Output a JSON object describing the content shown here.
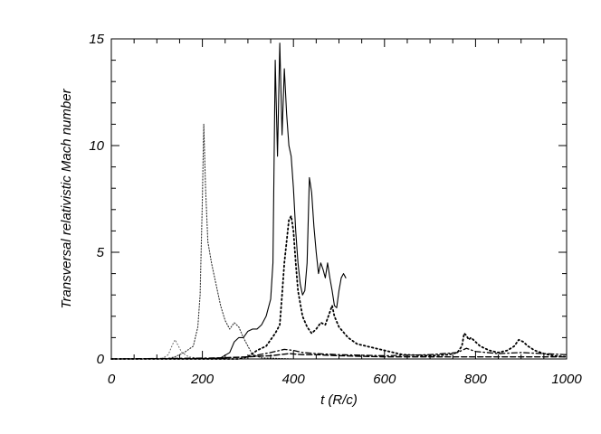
{
  "chart_data": {
    "type": "line",
    "title": "",
    "xlabel": "t (R/c)",
    "ylabel": "Transversal relativistic Mach number",
    "xlim": [
      0,
      1000
    ],
    "ylim": [
      0,
      15
    ],
    "xticks": [
      0,
      200,
      400,
      600,
      800,
      1000
    ],
    "yticks": [
      0,
      5,
      10,
      15
    ],
    "x_tick_labels": [
      "0",
      "200",
      "400",
      "600",
      "800",
      "1000"
    ],
    "y_tick_labels": [
      "0",
      "5",
      "10",
      "15"
    ],
    "grid": false,
    "legend": "none",
    "series": [
      {
        "style": "solid",
        "color": "#000000",
        "points": [
          [
            0,
            0
          ],
          [
            100,
            0
          ],
          [
            200,
            0
          ],
          [
            240,
            0.05
          ],
          [
            260,
            0.3
          ],
          [
            270,
            0.8
          ],
          [
            280,
            1.0
          ],
          [
            290,
            1.0
          ],
          [
            300,
            1.3
          ],
          [
            310,
            1.4
          ],
          [
            320,
            1.4
          ],
          [
            330,
            1.6
          ],
          [
            340,
            2.0
          ],
          [
            350,
            2.8
          ],
          [
            355,
            4.5
          ],
          [
            360,
            14.0
          ],
          [
            365,
            9.5
          ],
          [
            370,
            14.8
          ],
          [
            375,
            10.5
          ],
          [
            380,
            13.6
          ],
          [
            385,
            11.5
          ],
          [
            390,
            10.0
          ],
          [
            395,
            9.5
          ],
          [
            400,
            8.0
          ],
          [
            405,
            6.0
          ],
          [
            410,
            4.5
          ],
          [
            415,
            3.5
          ],
          [
            420,
            3.0
          ],
          [
            425,
            3.2
          ],
          [
            430,
            4.5
          ],
          [
            435,
            8.5
          ],
          [
            440,
            7.8
          ],
          [
            445,
            6.2
          ],
          [
            450,
            5.0
          ],
          [
            455,
            4.0
          ],
          [
            460,
            4.5
          ],
          [
            465,
            4.2
          ],
          [
            470,
            3.8
          ],
          [
            475,
            4.5
          ],
          [
            480,
            3.8
          ],
          [
            485,
            3.2
          ],
          [
            490,
            2.5
          ],
          [
            495,
            2.4
          ],
          [
            500,
            3.2
          ],
          [
            505,
            3.8
          ],
          [
            510,
            4.0
          ],
          [
            515,
            3.8
          ]
        ]
      },
      {
        "style": "dotted-dense",
        "color": "#000000",
        "points": [
          [
            0,
            0
          ],
          [
            120,
            0
          ],
          [
            140,
            0.1
          ],
          [
            160,
            0.3
          ],
          [
            180,
            0.6
          ],
          [
            190,
            1.5
          ],
          [
            195,
            3.0
          ],
          [
            200,
            7.5
          ],
          [
            203,
            11.0
          ],
          [
            207,
            8.0
          ],
          [
            212,
            5.5
          ],
          [
            220,
            4.5
          ],
          [
            230,
            3.5
          ],
          [
            240,
            2.5
          ],
          [
            250,
            1.8
          ],
          [
            260,
            1.4
          ],
          [
            270,
            1.7
          ],
          [
            280,
            1.5
          ],
          [
            290,
            1.0
          ],
          [
            300,
            0.6
          ],
          [
            310,
            0.2
          ],
          [
            330,
            0.05
          ],
          [
            400,
            0
          ],
          [
            1000,
            0
          ]
        ]
      },
      {
        "style": "dotted-bold",
        "color": "#000000",
        "points": [
          [
            0,
            0
          ],
          [
            280,
            0
          ],
          [
            300,
            0.1
          ],
          [
            320,
            0.4
          ],
          [
            340,
            0.6
          ],
          [
            350,
            0.9
          ],
          [
            360,
            1.2
          ],
          [
            370,
            1.6
          ],
          [
            375,
            3.0
          ],
          [
            380,
            4.5
          ],
          [
            385,
            5.5
          ],
          [
            390,
            6.5
          ],
          [
            395,
            6.7
          ],
          [
            400,
            6.0
          ],
          [
            405,
            4.5
          ],
          [
            410,
            3.2
          ],
          [
            420,
            2.0
          ],
          [
            430,
            1.5
          ],
          [
            440,
            1.2
          ],
          [
            450,
            1.4
          ],
          [
            460,
            1.7
          ],
          [
            470,
            1.6
          ],
          [
            480,
            2.2
          ],
          [
            485,
            2.5
          ],
          [
            490,
            2.0
          ],
          [
            500,
            1.5
          ],
          [
            520,
            1.0
          ],
          [
            540,
            0.7
          ],
          [
            560,
            0.6
          ],
          [
            580,
            0.5
          ],
          [
            600,
            0.4
          ],
          [
            640,
            0.2
          ],
          [
            700,
            0.15
          ],
          [
            740,
            0.2
          ],
          [
            760,
            0.3
          ],
          [
            770,
            0.6
          ],
          [
            775,
            1.2
          ],
          [
            780,
            1.1
          ],
          [
            785,
            0.9
          ],
          [
            790,
            1.0
          ],
          [
            800,
            0.8
          ],
          [
            810,
            0.6
          ],
          [
            830,
            0.4
          ],
          [
            850,
            0.3
          ],
          [
            870,
            0.4
          ],
          [
            885,
            0.6
          ],
          [
            895,
            0.9
          ],
          [
            905,
            0.8
          ],
          [
            915,
            0.6
          ],
          [
            930,
            0.4
          ],
          [
            950,
            0.25
          ],
          [
            970,
            0.15
          ],
          [
            1000,
            0.1
          ]
        ]
      },
      {
        "style": "dotted-light",
        "color": "#000000",
        "points": [
          [
            0,
            0
          ],
          [
            110,
            0
          ],
          [
            125,
            0.2
          ],
          [
            135,
            0.7
          ],
          [
            140,
            0.9
          ],
          [
            145,
            0.7
          ],
          [
            155,
            0.3
          ],
          [
            170,
            0.1
          ],
          [
            200,
            0
          ],
          [
            1000,
            0
          ]
        ]
      },
      {
        "style": "dashed",
        "color": "#000000",
        "points": [
          [
            0,
            0
          ],
          [
            200,
            0.02
          ],
          [
            300,
            0.1
          ],
          [
            350,
            0.15
          ],
          [
            390,
            0.25
          ],
          [
            420,
            0.2
          ],
          [
            450,
            0.2
          ],
          [
            500,
            0.15
          ],
          [
            600,
            0.1
          ],
          [
            700,
            0.1
          ],
          [
            800,
            0.1
          ],
          [
            900,
            0.1
          ],
          [
            1000,
            0.1
          ]
        ]
      },
      {
        "style": "dash-dot",
        "color": "#000000",
        "points": [
          [
            0,
            0
          ],
          [
            250,
            0.05
          ],
          [
            300,
            0.1
          ],
          [
            350,
            0.3
          ],
          [
            380,
            0.45
          ],
          [
            400,
            0.4
          ],
          [
            420,
            0.3
          ],
          [
            450,
            0.25
          ],
          [
            500,
            0.2
          ],
          [
            600,
            0.15
          ],
          [
            700,
            0.2
          ],
          [
            760,
            0.3
          ],
          [
            780,
            0.5
          ],
          [
            800,
            0.35
          ],
          [
            850,
            0.25
          ],
          [
            900,
            0.3
          ],
          [
            950,
            0.25
          ],
          [
            1000,
            0.2
          ]
        ]
      }
    ]
  }
}
